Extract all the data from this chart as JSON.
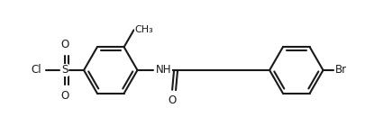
{
  "bg_color": "#ffffff",
  "line_color": "#1a1a1a",
  "lw": 1.5,
  "dbo": 0.038,
  "fs": 8.5,
  "figsize": [
    4.05,
    1.5
  ],
  "dpi": 100,
  "xlim": [
    0.0,
    4.05
  ],
  "ylim": [
    0.0,
    1.5
  ],
  "ring_r": 0.3,
  "lbx": 1.22,
  "lby": 0.72,
  "rbx": 3.3,
  "rby": 0.72
}
